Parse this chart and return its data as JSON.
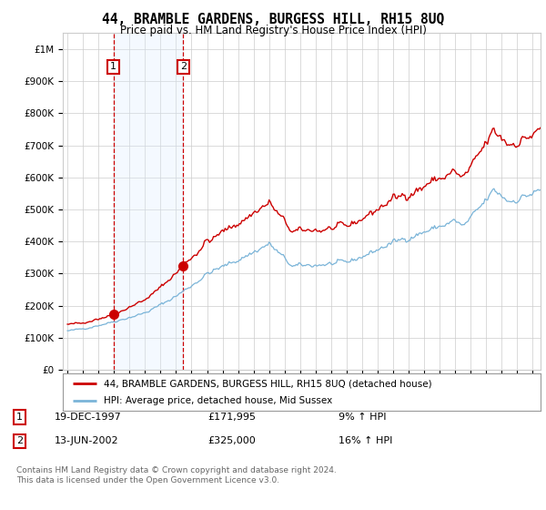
{
  "title": "44, BRAMBLE GARDENS, BURGESS HILL, RH15 8UQ",
  "subtitle": "Price paid vs. HM Land Registry's House Price Index (HPI)",
  "ylabel_ticks": [
    "£0",
    "£100K",
    "£200K",
    "£300K",
    "£400K",
    "£500K",
    "£600K",
    "£700K",
    "£800K",
    "£900K",
    "£1M"
  ],
  "ytick_vals": [
    0,
    100000,
    200000,
    300000,
    400000,
    500000,
    600000,
    700000,
    800000,
    900000,
    1000000
  ],
  "ylim": [
    0,
    1050000
  ],
  "x_start_year": 1995,
  "x_end_year": 2025,
  "sale1_year": 1997.958,
  "sale1_price": 171995,
  "sale2_year": 2002.458,
  "sale2_price": 325000,
  "hpi_color": "#7ab4d8",
  "price_color": "#cc0000",
  "vline_color": "#cc0000",
  "shade_color": "#ddeeff",
  "legend_label1": "44, BRAMBLE GARDENS, BURGESS HILL, RH15 8UQ (detached house)",
  "legend_label2": "HPI: Average price, detached house, Mid Sussex",
  "table_row1_num": "1",
  "table_row1_date": "19-DEC-1997",
  "table_row1_price": "£171,995",
  "table_row1_hpi": "9% ↑ HPI",
  "table_row2_num": "2",
  "table_row2_date": "13-JUN-2002",
  "table_row2_price": "£325,000",
  "table_row2_hpi": "16% ↑ HPI",
  "footnote": "Contains HM Land Registry data © Crown copyright and database right 2024.\nThis data is licensed under the Open Government Licence v3.0.",
  "bg_color": "#ffffff",
  "grid_color": "#cccccc"
}
